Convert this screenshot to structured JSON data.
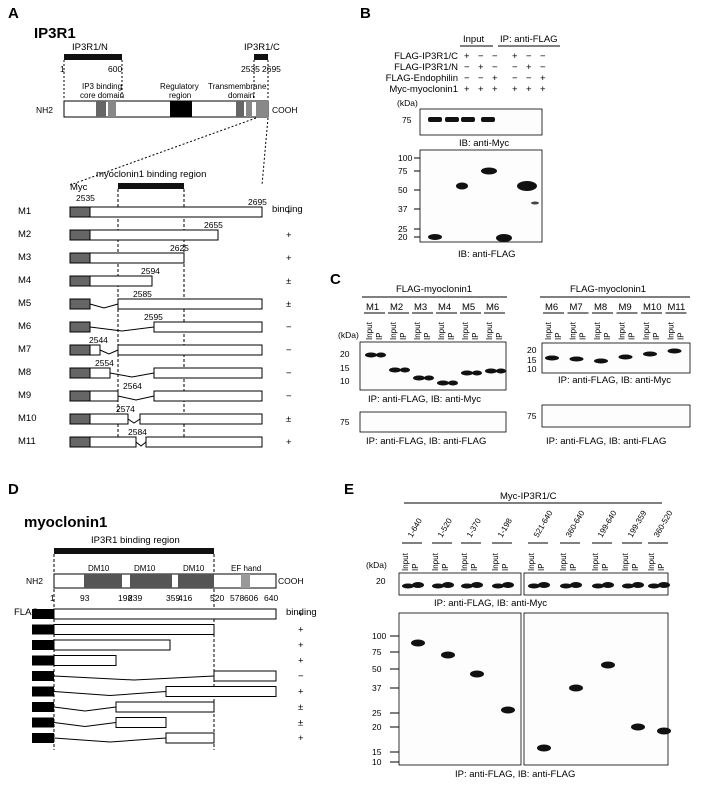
{
  "panels": {
    "a": "A",
    "b": "B",
    "c": "C",
    "d": "D",
    "e": "E"
  },
  "panel_a": {
    "title": "IP3R1",
    "n_label": "IP3R1/N",
    "c_label": "IP3R1/C",
    "pos": {
      "p1": "1",
      "p600": "600",
      "p2535": "2535",
      "p2695": "2695"
    },
    "domains": {
      "core1": "IP3 binding",
      "core2": "core domain",
      "reg1": "Regulatory",
      "reg2": "region",
      "tm1": "Transmembrane",
      "tm2": "domain"
    },
    "nh2": "NH2",
    "cooh": "COOH",
    "myc": "Myc",
    "binding_region": "myoclonin1 binding region",
    "binding_header": "binding",
    "constructs": [
      {
        "name": "M1",
        "num": "2695",
        "binding": "+"
      },
      {
        "name": "M2",
        "num": "2655",
        "binding": "+"
      },
      {
        "name": "M3",
        "num": "2625",
        "binding": "+"
      },
      {
        "name": "M4",
        "num": "2594",
        "binding": "±"
      },
      {
        "name": "M5",
        "num": "2585",
        "binding": "±"
      },
      {
        "name": "M6",
        "num": "2595",
        "binding": "−"
      },
      {
        "name": "M7",
        "num": "2544",
        "binding": "−"
      },
      {
        "name": "M8",
        "num": "2554",
        "binding": "−"
      },
      {
        "name": "M9",
        "num": "2564",
        "binding": "−"
      },
      {
        "name": "M10",
        "num": "2574",
        "binding": "±"
      },
      {
        "name": "M11",
        "num": "2584",
        "binding": "+"
      }
    ],
    "m1_start": "2535"
  },
  "panel_b": {
    "input": "Input",
    "ip": "IP: anti-FLAG",
    "rows": [
      {
        "label": "FLAG-IP3R1/C",
        "signs": [
          "+",
          "−",
          "−",
          "+",
          "−",
          "−"
        ]
      },
      {
        "label": "FLAG-IP3R1/N",
        "signs": [
          "−",
          "+",
          "−",
          "−",
          "+",
          "−"
        ]
      },
      {
        "label": "FLAG-Endophilin",
        "signs": [
          "−",
          "−",
          "+",
          "−",
          "−",
          "+"
        ]
      },
      {
        "label": "Myc-myoclonin1",
        "signs": [
          "+",
          "+",
          "+",
          "+",
          "+",
          "+"
        ]
      }
    ],
    "kda": "(kDa)",
    "top_marker": "75",
    "top_caption": "IB: anti-Myc",
    "bottom_markers": [
      "100",
      "75",
      "50",
      "37",
      "25",
      "20"
    ],
    "bottom_caption": "IB: anti-FLAG"
  },
  "panel_c": {
    "left_header": "FLAG-myoclonin1",
    "right_header": "FLAG-myoclonin1",
    "left_lanes": [
      "M1",
      "M2",
      "M3",
      "M4",
      "M5",
      "M6"
    ],
    "right_lanes": [
      "M6",
      "M7",
      "M8",
      "M9",
      "M10",
      "M11"
    ],
    "input": "Input",
    "ip": "IP",
    "kda": "(kDa)",
    "markers": [
      "20",
      "15",
      "10"
    ],
    "marker75": "75",
    "left_caption_top": "IP: anti-FLAG, IB: anti-Myc",
    "left_caption_bottom": "IP: anti-FLAG, IB: anti-FLAG",
    "right_caption_top": "IP: anti-FLAG, IB: anti-Myc",
    "right_caption_bottom": "IP: anti-FLAG, IB: anti-FLAG"
  },
  "panel_d": {
    "title": "myoclonin1",
    "binding_region": "IP3R1 binding region",
    "dm1": "DM10",
    "dm2": "DM10",
    "dm3": "DM10",
    "ef": "EF hand",
    "nh2": "NH2",
    "cooh": "COOH",
    "positions": [
      "1",
      "93",
      "198",
      "239",
      "359",
      "416",
      "520",
      "578",
      "606",
      "640"
    ],
    "flag": "FLAG",
    "binding_header": "binding",
    "binding": [
      "+",
      "+",
      "+",
      "+",
      "−",
      "+",
      "±",
      "±",
      "+"
    ]
  },
  "panel_e": {
    "header": "Myc-IP3R1/C",
    "lanes": [
      "1-640",
      "1-520",
      "1-370",
      "1-198",
      "521-640",
      "360-640",
      "199-640",
      "199-359",
      "360-520"
    ],
    "input": "Input",
    "ip": "IP",
    "kda": "(kDa)",
    "top_marker": "20",
    "top_caption": "IP: anti-FLAG, IB: anti-Myc",
    "bottom_markers": [
      "100",
      "75",
      "50",
      "37",
      "25",
      "20",
      "15",
      "10"
    ],
    "bottom_caption": "IP: anti-FLAG, IB: anti-FLAG"
  }
}
